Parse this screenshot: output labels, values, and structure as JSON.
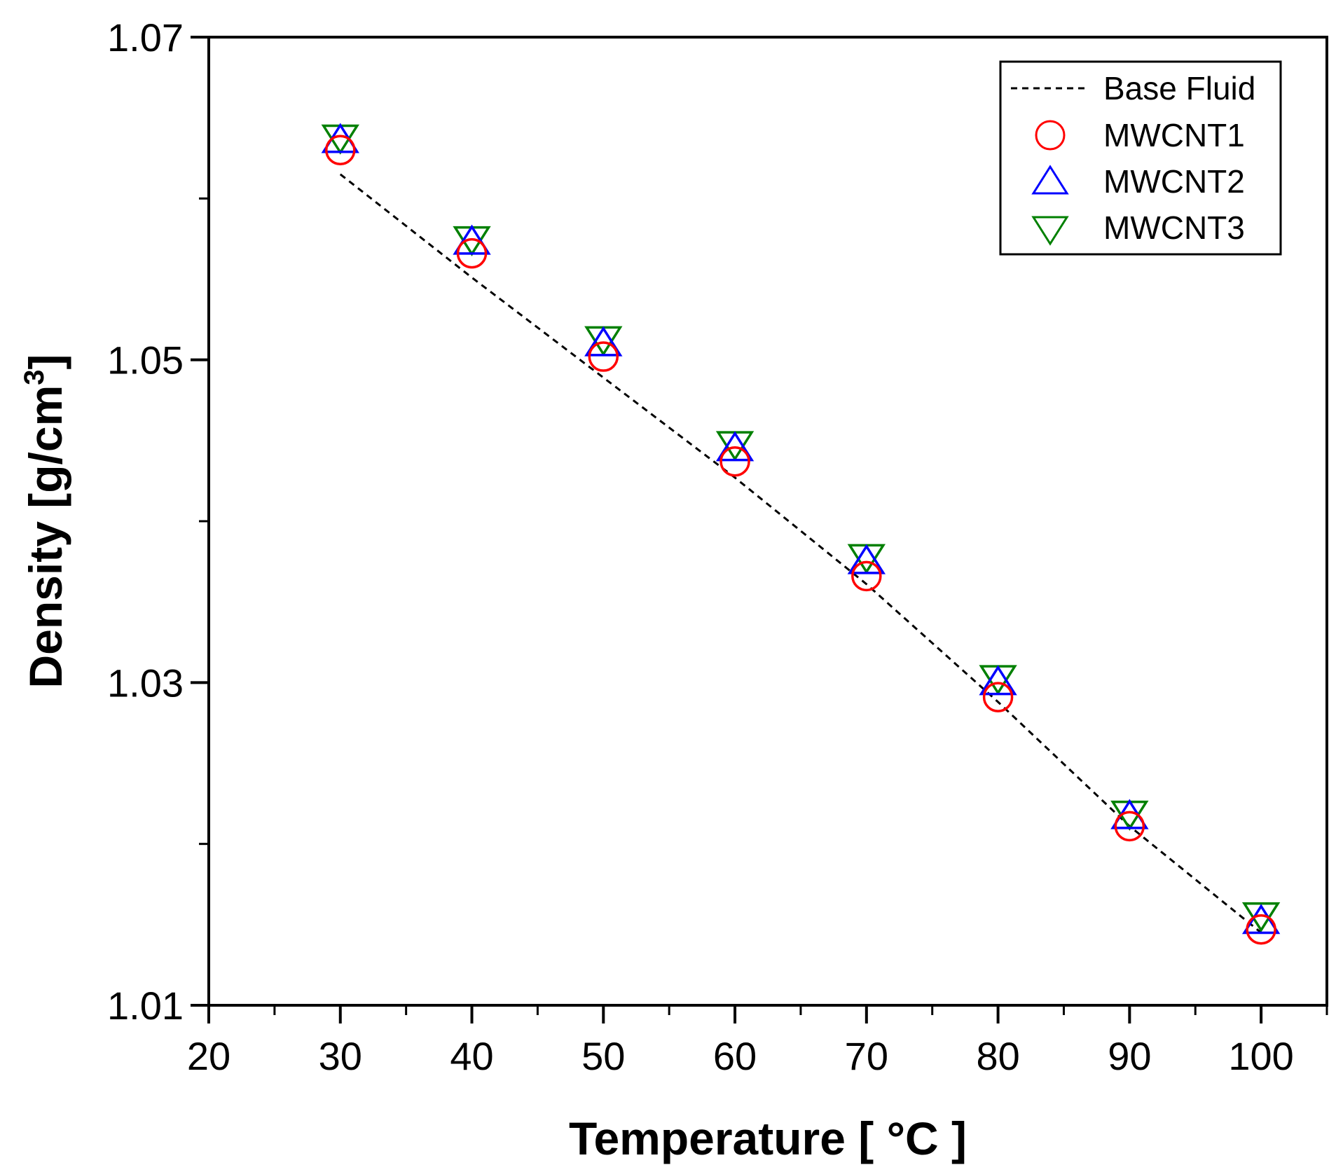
{
  "chart_data": {
    "type": "scatter",
    "title": "",
    "xlabel": "Temperature [ °C ]",
    "ylabel": "Density [g/cm3]",
    "ylabel_main": "Density [g/cm",
    "ylabel_sup": "3",
    "ylabel_close": "]",
    "xlim": [
      20,
      105
    ],
    "ylim": [
      1.01,
      1.07
    ],
    "xticks": [
      20,
      30,
      40,
      50,
      60,
      70,
      80,
      90,
      100
    ],
    "xtick_labels": [
      "20",
      "30",
      "40",
      "50",
      "60",
      "70",
      "80",
      "90",
      "100"
    ],
    "yticks": [
      1.01,
      1.03,
      1.05,
      1.07
    ],
    "ytick_labels": [
      "1.01",
      "1.03",
      "1.05",
      "1.07"
    ],
    "x_minor_step": 5,
    "y_minor_step": 0.01,
    "legend_position": "top-right",
    "x": [
      30,
      40,
      50,
      60,
      70,
      80,
      90,
      100
    ],
    "series": [
      {
        "name": "Base Fluid",
        "marker": "dashed-line",
        "color": "#000000",
        "values": [
          1.0615,
          1.0551,
          1.0489,
          1.0427,
          1.0361,
          1.0288,
          1.0211,
          1.0145
        ]
      },
      {
        "name": "MWCNT1",
        "marker": "circle",
        "color": "#ff0000",
        "values": [
          1.063,
          1.0566,
          1.0502,
          1.0437,
          1.0366,
          1.0291,
          1.0211,
          1.0147
        ]
      },
      {
        "name": "MWCNT2",
        "marker": "triangle-up",
        "color": "#0000ff",
        "values": [
          1.0635,
          1.0572,
          1.0509,
          1.0444,
          1.0374,
          1.0299,
          1.0216,
          1.0151
        ]
      },
      {
        "name": "MWCNT3",
        "marker": "triangle-down",
        "color": "#008000",
        "values": [
          1.0639,
          1.0576,
          1.0514,
          1.0449,
          1.0379,
          1.0304,
          1.022,
          1.0157
        ]
      }
    ]
  }
}
